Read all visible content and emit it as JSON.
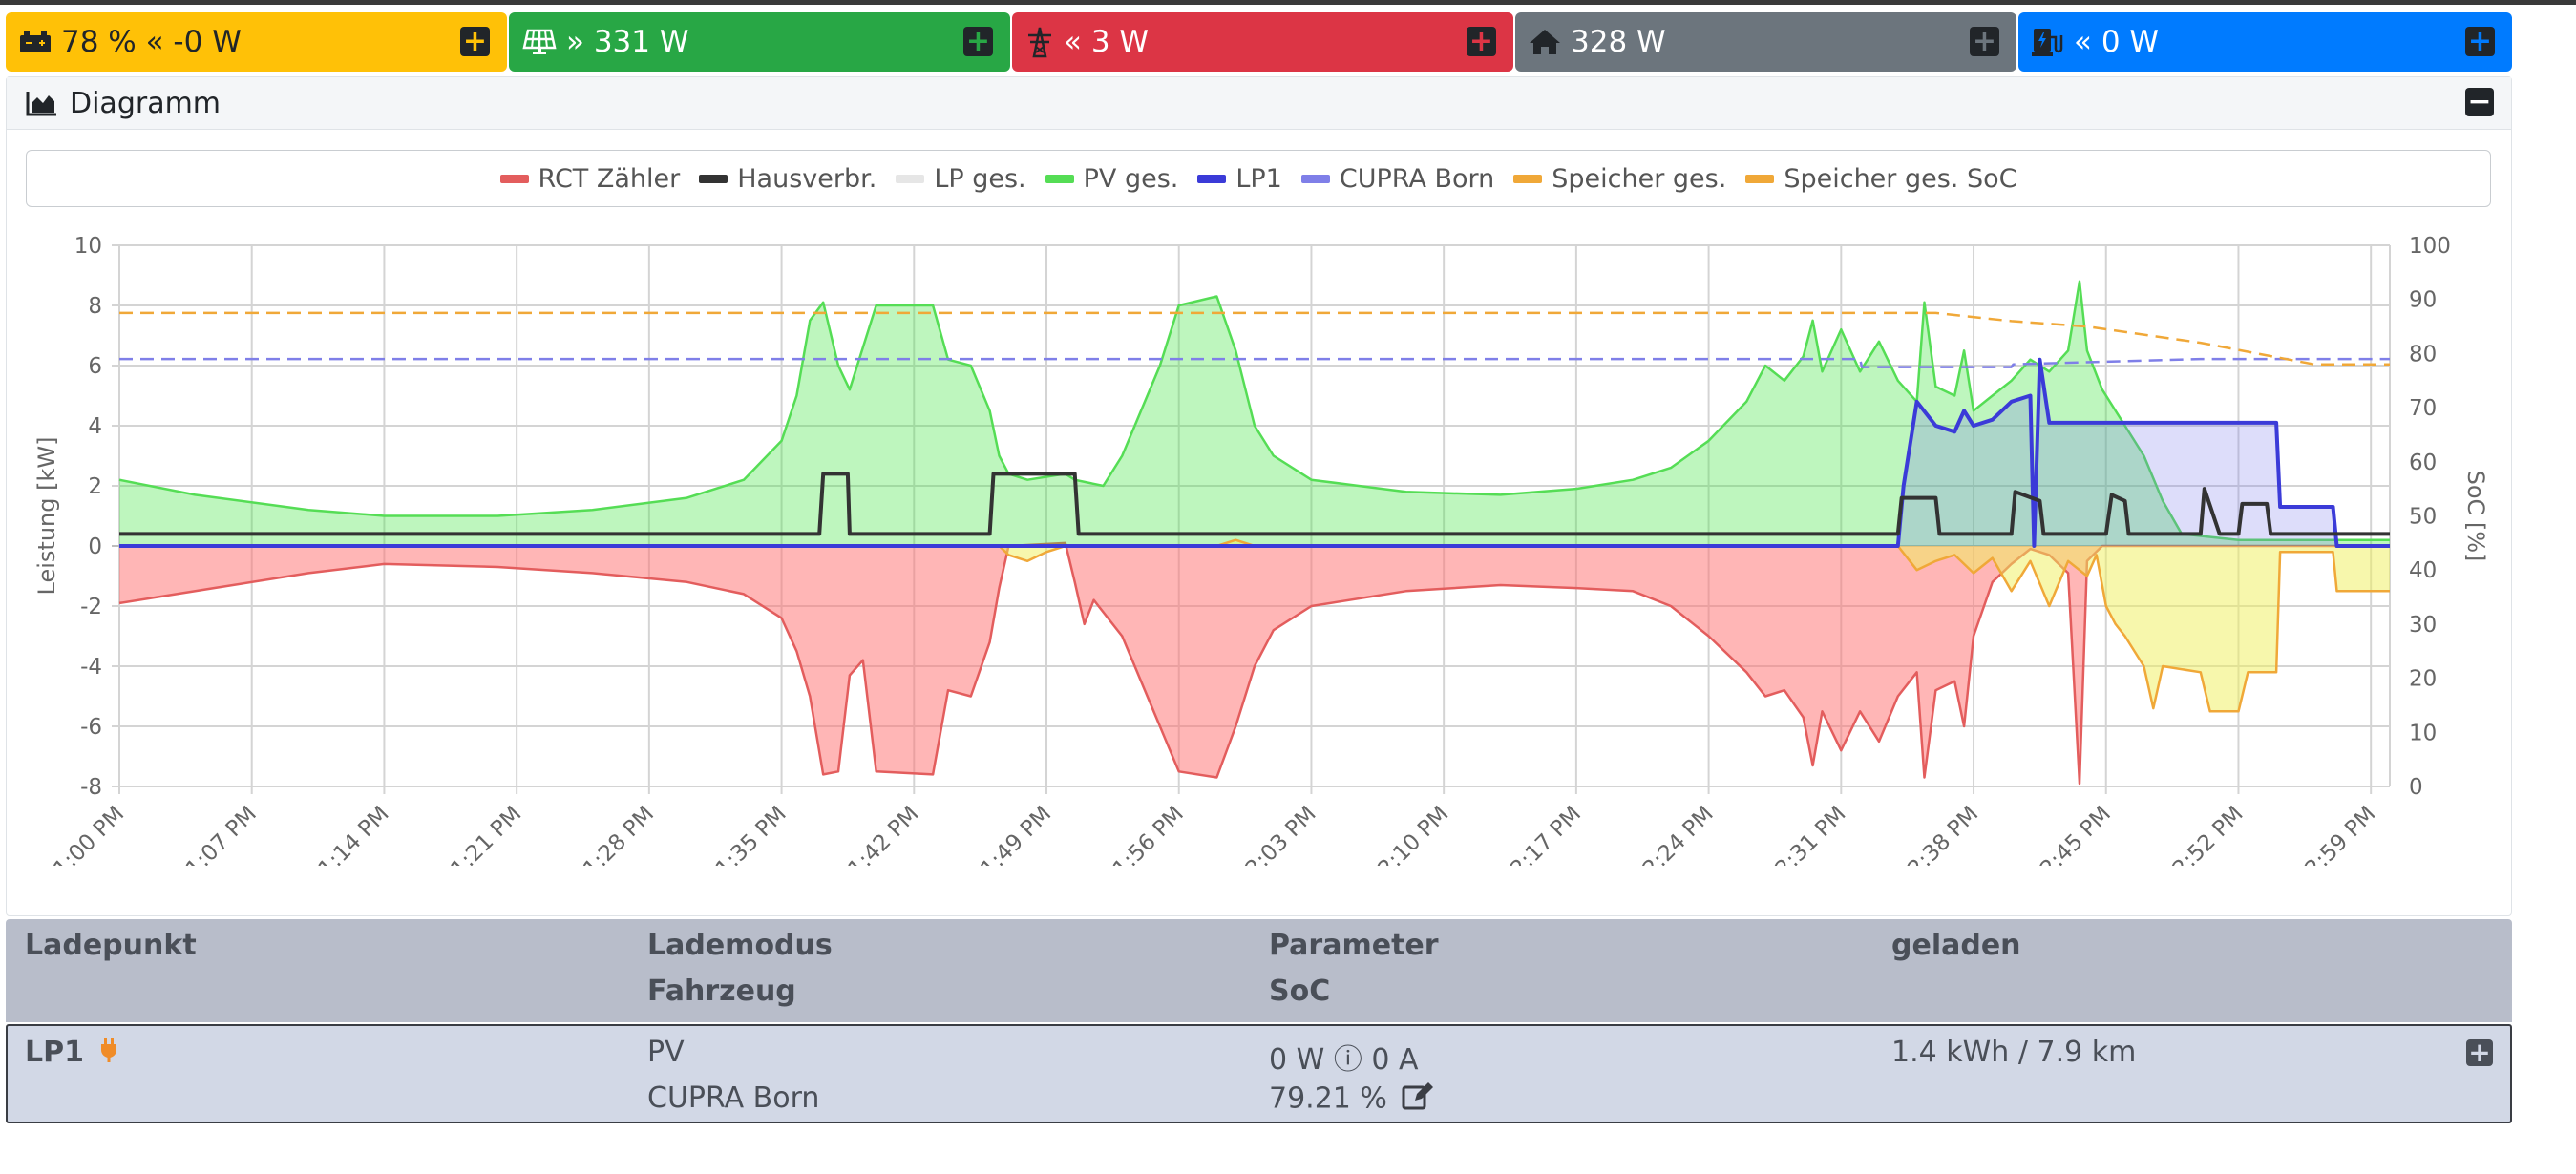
{
  "status_tiles": [
    {
      "id": "battery",
      "text": "78 % « -0 W",
      "icon": "battery-icon",
      "color": "#ffc107"
    },
    {
      "id": "pv",
      "text": "» 331 W",
      "icon": "solar-panel-icon",
      "color": "#28a745"
    },
    {
      "id": "grid",
      "text": "« 3 W",
      "icon": "power-tower-icon",
      "color": "#dc3545"
    },
    {
      "id": "house",
      "text": "328 W",
      "icon": "home-icon",
      "color": "#6c757d"
    },
    {
      "id": "chargepoint",
      "text": "« 0 W",
      "icon": "charging-station-icon",
      "color": "#007bff"
    }
  ],
  "plus_symbol": "+",
  "minus_symbol": "−",
  "diagram": {
    "title": "Diagramm",
    "icon": "area-chart-icon"
  },
  "chart_data": {
    "type": "area",
    "x_ticks": [
      "1:00 PM",
      "1:07 PM",
      "1:14 PM",
      "1:21 PM",
      "1:28 PM",
      "1:35 PM",
      "1:42 PM",
      "1:49 PM",
      "1:56 PM",
      "2:03 PM",
      "2:10 PM",
      "2:17 PM",
      "2:24 PM",
      "2:31 PM",
      "2:38 PM",
      "2:45 PM",
      "2:52 PM",
      "2:59 PM"
    ],
    "xlim_minutes": [
      0,
      120
    ],
    "ylabel": "Leistung [kW]",
    "ylim": [
      -8,
      10
    ],
    "y_ticks": [
      "10",
      "8",
      "6",
      "4",
      "2",
      "0",
      "-2",
      "-4",
      "-6",
      "-8"
    ],
    "y2label": "SoC [%]",
    "y2lim": [
      0,
      100
    ],
    "y2_ticks": [
      "100",
      "90",
      "80",
      "70",
      "60",
      "50",
      "40",
      "30",
      "20",
      "10",
      "0"
    ],
    "grid": true,
    "legend_position": "top",
    "series": [
      {
        "name": "RCT Zähler",
        "color": "#e35d5d",
        "fill": "rgba(255,110,110,0.5)",
        "axis": "left",
        "points": [
          [
            0,
            -1.9
          ],
          [
            5,
            -1.4
          ],
          [
            10,
            -0.9
          ],
          [
            14,
            -0.6
          ],
          [
            20,
            -0.7
          ],
          [
            25,
            -0.9
          ],
          [
            30,
            -1.2
          ],
          [
            33,
            -1.6
          ],
          [
            35,
            -2.4
          ],
          [
            35.8,
            -3.5
          ],
          [
            36.5,
            -5
          ],
          [
            37.2,
            -7.6
          ],
          [
            38,
            -7.5
          ],
          [
            38.6,
            -4.3
          ],
          [
            39.3,
            -3.8
          ],
          [
            40,
            -7.5
          ],
          [
            43,
            -7.6
          ],
          [
            43.8,
            -4.8
          ],
          [
            45,
            -5
          ],
          [
            46,
            -3.2
          ],
          [
            46.5,
            -1.4
          ],
          [
            47,
            0
          ],
          [
            50,
            0.1
          ],
          [
            50.5,
            -1.2
          ],
          [
            51,
            -2.6
          ],
          [
            51.5,
            -1.8
          ],
          [
            53,
            -3
          ],
          [
            55,
            -6
          ],
          [
            56,
            -7.5
          ],
          [
            58,
            -7.7
          ],
          [
            59,
            -6
          ],
          [
            60,
            -4
          ],
          [
            61,
            -2.8
          ],
          [
            63,
            -2
          ],
          [
            68,
            -1.5
          ],
          [
            73,
            -1.3
          ],
          [
            77,
            -1.4
          ],
          [
            80,
            -1.5
          ],
          [
            82,
            -2
          ],
          [
            84,
            -3
          ],
          [
            86,
            -4.2
          ],
          [
            87,
            -5
          ],
          [
            88,
            -4.8
          ],
          [
            89,
            -5.7
          ],
          [
            89.5,
            -7.3
          ],
          [
            90,
            -5.5
          ],
          [
            91,
            -6.8
          ],
          [
            92,
            -5.5
          ],
          [
            93,
            -6.5
          ],
          [
            94,
            -5
          ],
          [
            95,
            -4.2
          ],
          [
            95.4,
            -7.7
          ],
          [
            96,
            -4.8
          ],
          [
            97,
            -4.5
          ],
          [
            97.5,
            -6
          ],
          [
            98,
            -3
          ],
          [
            99,
            -1.2
          ],
          [
            100,
            -0.6
          ],
          [
            101,
            -0.1
          ],
          [
            102,
            -0.3
          ],
          [
            103,
            -0.9
          ],
          [
            103.6,
            -7.9
          ],
          [
            104,
            -0.5
          ],
          [
            104.8,
            0
          ],
          [
            112,
            0
          ],
          [
            120,
            0
          ]
        ]
      },
      {
        "name": "Hausverbr.",
        "color": "#333333",
        "fill": null,
        "axis": "left",
        "points": [
          [
            0,
            0.4
          ],
          [
            10,
            0.4
          ],
          [
            20,
            0.4
          ],
          [
            37,
            0.4
          ],
          [
            37.2,
            2.4
          ],
          [
            38.5,
            2.4
          ],
          [
            38.6,
            0.4
          ],
          [
            46,
            0.4
          ],
          [
            46.2,
            2.4
          ],
          [
            50.5,
            2.4
          ],
          [
            50.7,
            0.4
          ],
          [
            80,
            0.4
          ],
          [
            94,
            0.4
          ],
          [
            94.2,
            1.6
          ],
          [
            96,
            1.6
          ],
          [
            96.2,
            0.4
          ],
          [
            100,
            0.4
          ],
          [
            100.2,
            1.8
          ],
          [
            101.5,
            1.5
          ],
          [
            101.7,
            0.4
          ],
          [
            105,
            0.4
          ],
          [
            105.3,
            1.7
          ],
          [
            106,
            1.5
          ],
          [
            106.2,
            0.4
          ],
          [
            110,
            0.4
          ],
          [
            110.2,
            1.9
          ],
          [
            111,
            0.4
          ],
          [
            112,
            0.4
          ],
          [
            112.2,
            1.4
          ],
          [
            113.5,
            1.4
          ],
          [
            113.7,
            0.4
          ],
          [
            120,
            0.4
          ]
        ]
      },
      {
        "name": "LP ges.",
        "color": "#e6e6e6",
        "fill": null,
        "axis": "left",
        "points": []
      },
      {
        "name": "PV ges.",
        "color": "#55dd55",
        "fill": "rgba(70,230,70,0.35)",
        "axis": "left",
        "points": [
          [
            0,
            2.2
          ],
          [
            4,
            1.7
          ],
          [
            10,
            1.2
          ],
          [
            14,
            1.0
          ],
          [
            20,
            1.0
          ],
          [
            25,
            1.2
          ],
          [
            30,
            1.6
          ],
          [
            33,
            2.2
          ],
          [
            35,
            3.5
          ],
          [
            35.8,
            5
          ],
          [
            36.5,
            7.5
          ],
          [
            37.2,
            8.1
          ],
          [
            38,
            6
          ],
          [
            38.6,
            5.2
          ],
          [
            40,
            8
          ],
          [
            43,
            8
          ],
          [
            43.8,
            6.2
          ],
          [
            45,
            6
          ],
          [
            46,
            4.5
          ],
          [
            46.5,
            3
          ],
          [
            47,
            2.4
          ],
          [
            48,
            2.2
          ],
          [
            50,
            2.4
          ],
          [
            50.5,
            2.2
          ],
          [
            52,
            2
          ],
          [
            53,
            3
          ],
          [
            55,
            6
          ],
          [
            56,
            8
          ],
          [
            58,
            8.3
          ],
          [
            59,
            6.5
          ],
          [
            60,
            4
          ],
          [
            61,
            3
          ],
          [
            63,
            2.2
          ],
          [
            68,
            1.8
          ],
          [
            73,
            1.7
          ],
          [
            77,
            1.9
          ],
          [
            80,
            2.2
          ],
          [
            82,
            2.6
          ],
          [
            84,
            3.5
          ],
          [
            86,
            4.8
          ],
          [
            87,
            6
          ],
          [
            88,
            5.5
          ],
          [
            89,
            6.3
          ],
          [
            89.5,
            7.5
          ],
          [
            90,
            5.8
          ],
          [
            91,
            7.2
          ],
          [
            92,
            5.8
          ],
          [
            93,
            6.8
          ],
          [
            94,
            5.5
          ],
          [
            95,
            4.8
          ],
          [
            95.4,
            8.1
          ],
          [
            96,
            5.3
          ],
          [
            97,
            5
          ],
          [
            97.5,
            6.5
          ],
          [
            98,
            4.5
          ],
          [
            99,
            5
          ],
          [
            100,
            5.5
          ],
          [
            101,
            6.2
          ],
          [
            102,
            5.8
          ],
          [
            103,
            6.5
          ],
          [
            103.6,
            8.8
          ],
          [
            104,
            6.5
          ],
          [
            104.8,
            5.2
          ],
          [
            106,
            4
          ],
          [
            107,
            3
          ],
          [
            108,
            1.5
          ],
          [
            109,
            0.4
          ],
          [
            112,
            0.2
          ],
          [
            120,
            0.2
          ]
        ]
      },
      {
        "name": "LP1",
        "color": "#3b3bd8",
        "fill": "rgba(120,120,235,0.25)",
        "axis": "left",
        "points": [
          [
            0,
            0
          ],
          [
            94,
            0
          ],
          [
            94.3,
            2
          ],
          [
            95,
            4.8
          ],
          [
            96,
            4
          ],
          [
            97,
            3.8
          ],
          [
            97.5,
            4.5
          ],
          [
            98,
            4
          ],
          [
            99,
            4.2
          ],
          [
            100,
            4.8
          ],
          [
            101,
            5
          ],
          [
            101.2,
            0
          ],
          [
            101.5,
            6.2
          ],
          [
            102,
            4.1
          ],
          [
            112,
            4.1
          ],
          [
            114,
            4.1
          ],
          [
            114.2,
            1.3
          ],
          [
            117,
            1.3
          ],
          [
            117.2,
            0
          ],
          [
            120,
            0
          ]
        ]
      },
      {
        "name": "CUPRA Born",
        "color": "#7f7fe8",
        "fill": null,
        "axis": "right",
        "dashed": true,
        "points": [
          [
            0,
            79
          ],
          [
            92,
            79
          ],
          [
            92.1,
            77.5
          ],
          [
            100,
            77.5
          ],
          [
            100.1,
            78
          ],
          [
            110,
            79
          ],
          [
            120,
            79
          ]
        ]
      },
      {
        "name": "Speicher ges.",
        "color": "#f0a838",
        "fill": "rgba(240,240,90,0.5)",
        "axis": "left",
        "points": [
          [
            0,
            0
          ],
          [
            46.5,
            0
          ],
          [
            47,
            -0.3
          ],
          [
            48,
            -0.5
          ],
          [
            49,
            -0.2
          ],
          [
            50,
            0
          ],
          [
            58,
            0
          ],
          [
            59,
            0.2
          ],
          [
            60,
            0
          ],
          [
            94,
            0
          ],
          [
            95,
            -0.8
          ],
          [
            96,
            -0.5
          ],
          [
            97,
            -0.3
          ],
          [
            98,
            -0.9
          ],
          [
            99,
            -0.4
          ],
          [
            100,
            -1.5
          ],
          [
            101,
            -0.5
          ],
          [
            102,
            -2
          ],
          [
            103,
            -0.5
          ],
          [
            104,
            -1
          ],
          [
            104.5,
            -0.3
          ],
          [
            105,
            -2
          ],
          [
            105.5,
            -2.6
          ],
          [
            106,
            -3
          ],
          [
            107,
            -4
          ],
          [
            107.5,
            -5.4
          ],
          [
            108,
            -4
          ],
          [
            110,
            -4.2
          ],
          [
            110.5,
            -5.5
          ],
          [
            112,
            -5.5
          ],
          [
            112.5,
            -4.2
          ],
          [
            114,
            -4.2
          ],
          [
            114.2,
            -0.2
          ],
          [
            117,
            -0.2
          ],
          [
            117.2,
            -1.5
          ],
          [
            118,
            -1.5
          ],
          [
            120,
            -1.5
          ]
        ]
      },
      {
        "name": "Speicher ges. SoC",
        "color": "#f0a838",
        "fill": null,
        "axis": "right",
        "dashed": true,
        "points": [
          [
            0,
            87.5
          ],
          [
            96,
            87.5
          ],
          [
            100,
            86
          ],
          [
            104,
            85
          ],
          [
            107,
            83.5
          ],
          [
            110,
            82
          ],
          [
            113,
            80
          ],
          [
            116,
            78
          ],
          [
            120,
            78
          ]
        ]
      }
    ]
  },
  "table": {
    "headers": {
      "col1": "Ladepunkt",
      "col2a": "Lademodus",
      "col2b": "Fahrzeug",
      "col3a": "Parameter",
      "col3b": "SoC",
      "col4": "geladen"
    },
    "rows": [
      {
        "name": "LP1",
        "plug_icon": "plug-icon",
        "mode": "PV",
        "vehicle": "CUPRA Born",
        "param": "0 W ⓘ 0 A",
        "soc": "79.21 %",
        "edit_icon": "edit-icon",
        "charged": "1.4 kWh / 7.9 km"
      }
    ]
  }
}
